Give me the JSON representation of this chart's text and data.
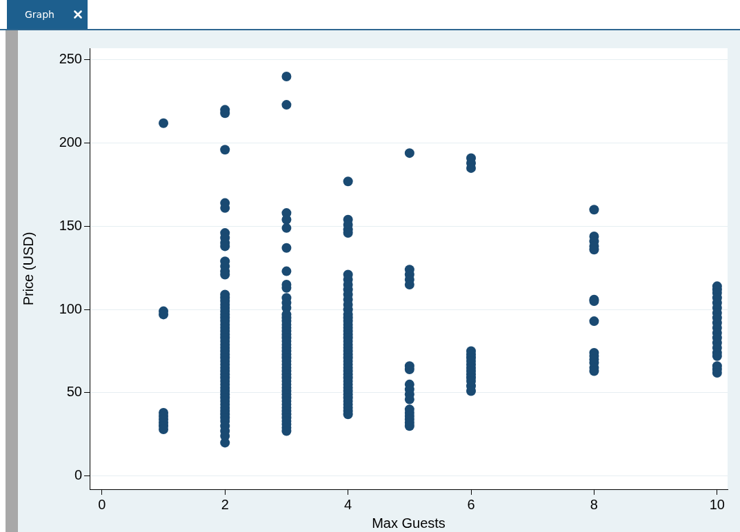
{
  "chart_data": {
    "type": "scatter",
    "xlabel": "Max Guests",
    "ylabel": "Price (USD)",
    "annotations": [
      "Graph"
    ],
    "x": [
      1,
      1,
      1,
      1,
      1,
      1,
      1,
      1,
      1,
      2,
      2,
      2,
      2,
      2,
      2,
      2,
      2,
      2,
      2,
      2,
      2,
      2,
      2,
      2,
      2,
      2,
      2,
      2,
      2,
      2,
      2,
      2,
      2,
      2,
      2,
      2,
      2,
      2,
      2,
      2,
      2,
      2,
      2,
      2,
      2,
      2,
      2,
      2,
      2,
      2,
      2,
      2,
      2,
      2,
      2,
      2,
      2,
      2,
      2,
      2,
      2,
      2,
      2,
      2,
      2,
      3,
      3,
      3,
      3,
      3,
      3,
      3,
      3,
      3,
      3,
      3,
      3,
      3,
      3,
      3,
      3,
      3,
      3,
      3,
      3,
      3,
      3,
      3,
      3,
      3,
      3,
      3,
      3,
      3,
      3,
      3,
      3,
      3,
      3,
      3,
      3,
      3,
      3,
      3,
      3,
      3,
      3,
      3,
      3,
      3,
      3,
      3,
      3,
      4,
      4,
      4,
      4,
      4,
      4,
      4,
      4,
      4,
      4,
      4,
      4,
      4,
      4,
      4,
      4,
      4,
      4,
      4,
      4,
      4,
      4,
      4,
      4,
      4,
      4,
      4,
      4,
      4,
      4,
      4,
      4,
      4,
      4,
      4,
      4,
      4,
      4,
      4,
      4,
      4,
      4,
      4,
      4,
      5,
      5,
      5,
      5,
      5,
      5,
      5,
      5,
      5,
      5,
      5,
      5,
      5,
      5,
      5,
      5,
      5,
      6,
      6,
      6,
      6,
      6,
      6,
      6,
      6,
      6,
      6,
      6,
      6,
      6,
      6,
      6,
      8,
      8,
      8,
      8,
      8,
      8,
      8,
      8,
      8,
      8,
      8,
      8,
      8,
      8,
      10,
      10,
      10,
      10,
      10,
      10,
      10,
      10,
      10,
      10,
      10,
      10,
      10,
      10,
      10,
      10,
      10,
      10,
      10
    ],
    "values": [
      212,
      99,
      97,
      38,
      36,
      34,
      32,
      30,
      28,
      220,
      218,
      196,
      164,
      161,
      146,
      143,
      140,
      138,
      129,
      126,
      123,
      121,
      109,
      107,
      105,
      103,
      101,
      99,
      97,
      95,
      93,
      91,
      89,
      87,
      85,
      83,
      81,
      79,
      77,
      75,
      73,
      71,
      69,
      67,
      65,
      63,
      61,
      59,
      57,
      55,
      53,
      51,
      49,
      47,
      45,
      43,
      41,
      39,
      37,
      35,
      33,
      30,
      27,
      24,
      20,
      240,
      223,
      158,
      154,
      149,
      137,
      123,
      115,
      113,
      107,
      104,
      101,
      97,
      95,
      93,
      91,
      89,
      87,
      85,
      83,
      81,
      79,
      77,
      75,
      73,
      71,
      69,
      67,
      65,
      63,
      61,
      59,
      57,
      55,
      53,
      51,
      49,
      47,
      45,
      43,
      41,
      39,
      37,
      35,
      33,
      31,
      29,
      27,
      177,
      154,
      151,
      148,
      146,
      121,
      118,
      115,
      112,
      109,
      106,
      103,
      100,
      97,
      95,
      93,
      91,
      89,
      87,
      85,
      83,
      81,
      79,
      77,
      75,
      73,
      71,
      69,
      67,
      65,
      63,
      61,
      59,
      57,
      55,
      53,
      51,
      49,
      47,
      45,
      43,
      41,
      39,
      37,
      194,
      124,
      121,
      118,
      115,
      66,
      64,
      55,
      52,
      49,
      46,
      40,
      38,
      36,
      34,
      32,
      30,
      191,
      188,
      185,
      75,
      73,
      71,
      69,
      67,
      65,
      63,
      61,
      59,
      57,
      54,
      51,
      160,
      144,
      141,
      138,
      136,
      106,
      105,
      93,
      74,
      72,
      70,
      68,
      65,
      63,
      114,
      112,
      110,
      107,
      104,
      101,
      98,
      95,
      92,
      89,
      86,
      83,
      80,
      77,
      74,
      72,
      66,
      64,
      62
    ],
    "color": "#1a4a72",
    "marker": "circle",
    "grid": "y",
    "legend": false,
    "xlim": [
      -0.2,
      10.17
    ],
    "ylim": [
      -8,
      257
    ],
    "xticks": [
      0,
      2,
      4,
      6,
      8,
      10
    ],
    "yticks": [
      0,
      50,
      100,
      150,
      200,
      250
    ]
  }
}
